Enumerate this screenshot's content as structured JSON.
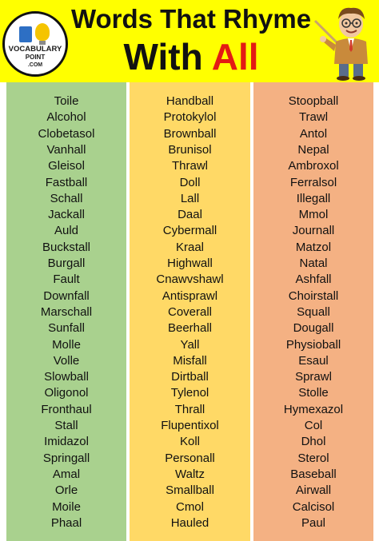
{
  "header": {
    "title_line1": "Words That Rhyme",
    "title_line2_part1": "With",
    "title_line2_part2": "All",
    "logo_line1": "VOCABULARY",
    "logo_line2": "POINT",
    "logo_line3": ".COM"
  },
  "colors": {
    "banner": "#ffff00",
    "column1": "#a9d18e",
    "column2": "#ffd966",
    "column3": "#f4b183",
    "accent": "#e31b14"
  },
  "columns": [
    [
      "Toile",
      "Alcohol",
      "Clobetasol",
      "Vanhall",
      "Gleisol",
      "Fastball",
      "Schall",
      "Jackall",
      "Auld",
      "Buckstall",
      "Burgall",
      "Fault",
      "Downfall",
      "Marschall",
      "Sunfall",
      "Molle",
      "Volle",
      "Slowball",
      "Oligonol",
      "Fronthaul",
      "Stall",
      "Imidazol",
      "Springall",
      "Amal",
      "Orle",
      "Moile",
      "Phaal"
    ],
    [
      "Handball",
      "Protokylol",
      "Brownball",
      "Brunisol",
      "Thrawl",
      "Doll",
      "Lall",
      "Daal",
      "Cybermall",
      "Kraal",
      "Highwall",
      "Cnawvshawl",
      "Antisprawl",
      "Coverall",
      "Beerhall",
      "Yall",
      "Misfall",
      "Dirtball",
      "Tylenol",
      "Thrall",
      "Flupentixol",
      "Koll",
      "Personall",
      "Waltz",
      "Smallball",
      "Cmol",
      "Hauled"
    ],
    [
      "Stoopball",
      "Trawl",
      "Antol",
      "Nepal",
      "Ambroxol",
      "Ferralsol",
      "Illegall",
      "Mmol",
      "Journall",
      "Matzol",
      "Natal",
      "Ashfall",
      "Choirstall",
      "Squall",
      "Dougall",
      "Physioball",
      "Esaul",
      "Sprawl",
      "Stolle",
      "Hymexazol",
      "Col",
      "Dhol",
      "Sterol",
      "Baseball",
      "Airwall",
      "Calcisol",
      "Paul"
    ]
  ]
}
